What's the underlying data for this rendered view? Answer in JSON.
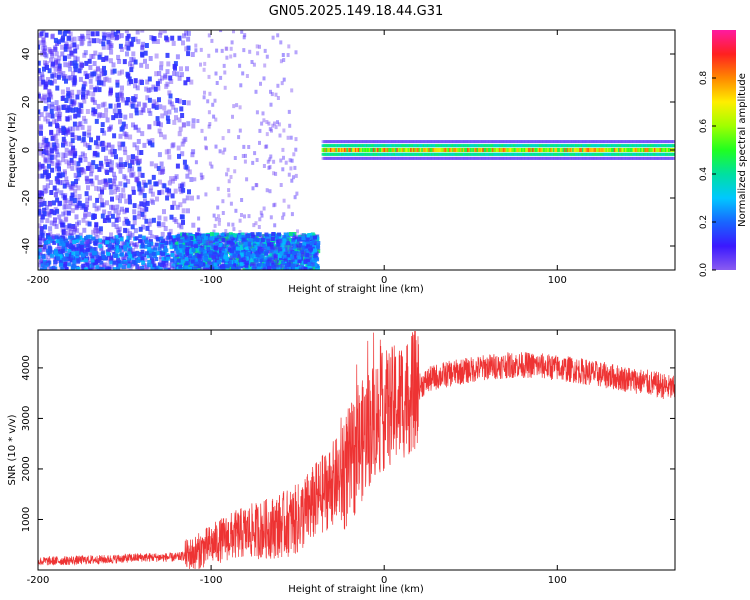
{
  "title": "GN05.2025.149.18.44.G31",
  "chart_data": [
    {
      "type": "heatmap",
      "title": "GN05.2025.149.18.44.G31",
      "xlabel": "Height of straight line (km)",
      "ylabel": "Frequency (Hz)",
      "xlim": [
        -200,
        168
      ],
      "ylim": [
        -50,
        50
      ],
      "x_ticks": [
        "-200",
        "-100",
        "0",
        "100"
      ],
      "y_ticks": [
        "-40",
        "-20",
        "0",
        "20",
        "40"
      ],
      "colorbar": {
        "label": "Normalized spectral amplitude",
        "range": [
          0,
          1
        ],
        "ticks": [
          "0.0",
          "0.2",
          "0.4",
          "0.6",
          "0.8"
        ],
        "colormap": "violet-blue-cyan-green-yellow-red-magenta"
      },
      "regions": [
        {
          "x": [
            -200,
            -110
          ],
          "freq": [
            -50,
            50
          ],
          "amplitude": 0.1,
          "note": "broadband scatter"
        },
        {
          "x": [
            -120,
            -38
          ],
          "freq": [
            -50,
            -35
          ],
          "amplitude": 0.3
        },
        {
          "x": [
            -35,
            168
          ],
          "freq": [
            -2,
            2
          ],
          "amplitude": 0.8
        }
      ]
    },
    {
      "type": "line",
      "xlabel": "Height of straight line (km)",
      "ylabel": "SNR (10 * v/v)",
      "xlim": [
        -200,
        168
      ],
      "ylim": [
        0,
        4750
      ],
      "x_ticks": [
        "-200",
        "-100",
        "0",
        "100"
      ],
      "y_ticks": [
        "1000",
        "2000",
        "3000",
        "4000"
      ],
      "color": "#ee3333",
      "series": [
        {
          "x": [
            -200,
            -180,
            -160,
            -140,
            -120,
            -110,
            -100,
            -90,
            -80,
            -70,
            -60,
            -50,
            -40,
            -30,
            -20,
            -15,
            -10,
            -5,
            0,
            5,
            10,
            15,
            20,
            25,
            30,
            40,
            50,
            60,
            70,
            80,
            90,
            100,
            110,
            120,
            130,
            140,
            150,
            160,
            168
          ],
          "values": [
            170,
            190,
            210,
            250,
            250,
            320,
            500,
            650,
            750,
            800,
            880,
            1000,
            1350,
            1700,
            2050,
            2400,
            2750,
            3000,
            3150,
            3250,
            3350,
            3480,
            3620,
            3750,
            3820,
            3900,
            3960,
            4020,
            4050,
            4060,
            4040,
            4000,
            3960,
            3900,
            3840,
            3780,
            3720,
            3650,
            3580
          ]
        }
      ]
    }
  ]
}
